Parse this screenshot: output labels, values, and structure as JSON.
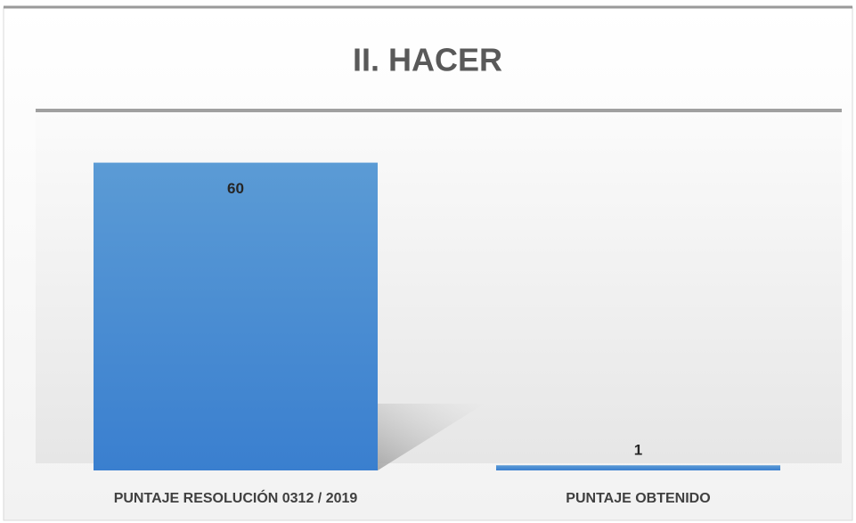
{
  "chart_data": {
    "type": "bar",
    "title": "II. HACER",
    "categories": [
      "PUNTAJE RESOLUCIÓN 0312 / 2019",
      "PUNTAJE OBTENIDO"
    ],
    "values": [
      60,
      1
    ],
    "color": "#4a8ed6",
    "ylim": [
      0,
      70
    ]
  }
}
